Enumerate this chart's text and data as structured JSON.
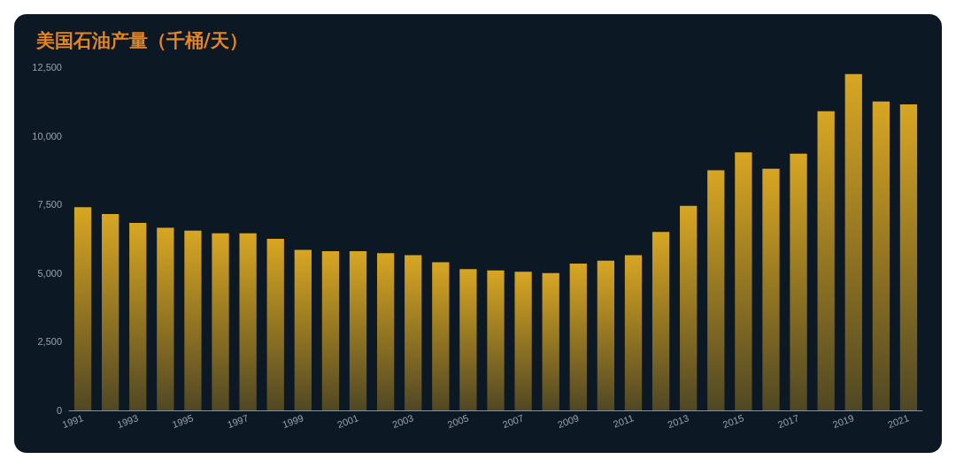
{
  "chart_data": {
    "type": "bar",
    "title": "美国石油产量（千桶/天）",
    "categories": [
      "1991",
      null,
      "1993",
      null,
      "1995",
      null,
      "1997",
      null,
      "1999",
      null,
      "2001",
      null,
      "2003",
      null,
      "2005",
      null,
      "2007",
      null,
      "2009",
      null,
      "2011",
      null,
      "2013",
      null,
      "2015",
      null,
      "2017",
      null,
      "2019",
      null,
      "2021"
    ],
    "values": [
      7400,
      7150,
      6830,
      6650,
      6550,
      6450,
      6450,
      6250,
      5850,
      5800,
      5800,
      5730,
      5650,
      5400,
      5150,
      5100,
      5050,
      5000,
      5350,
      5450,
      5650,
      6500,
      7450,
      8750,
      9400,
      8800,
      9350,
      10900,
      12250,
      11250,
      11150
    ],
    "color": "#d8a622",
    "ylim": [
      0,
      12500
    ],
    "yticks": [
      {
        "value": 0,
        "label": "0"
      },
      {
        "value": 2500,
        "label": "2,500"
      },
      {
        "value": 5000,
        "label": "5,000"
      },
      {
        "value": 7500,
        "label": "7,500"
      },
      {
        "value": 10000,
        "label": "10,000"
      },
      {
        "value": 12500,
        "label": "12,500"
      }
    ],
    "grid": false
  }
}
